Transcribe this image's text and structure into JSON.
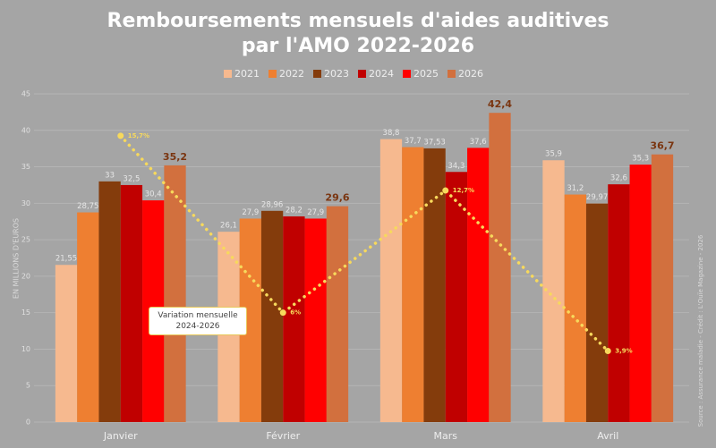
{
  "chart_data": {
    "type": "bar",
    "title": [
      "Remboursements mensuels d'aides auditives",
      "par l'AMO 2022-2026"
    ],
    "y_label": "EN MILLIONS D'EUROS",
    "source": "Source : Assurance maladie - Crédit : L'Ouïe Magazine - 2026",
    "categories": [
      "Janvier",
      "Février",
      "Mars",
      "Avril"
    ],
    "ylim": [
      0,
      45
    ],
    "yticks": [
      0,
      5,
      10,
      15,
      20,
      25,
      30,
      35,
      40,
      45
    ],
    "grid": true,
    "y2lim": [
      0,
      18
    ],
    "series": [
      {
        "name": "2021",
        "color": "#f6b98f",
        "values": [
          21.55,
          26.1,
          38.8,
          35.9
        ],
        "value_labels": [
          "21,55",
          "26,1",
          "38,8",
          "35,9"
        ]
      },
      {
        "name": "2022",
        "color": "#ee7f31",
        "values": [
          28.75,
          27.9,
          37.7,
          31.2
        ],
        "value_labels": [
          "28,75",
          "27,9",
          "37,7",
          "31,2"
        ]
      },
      {
        "name": "2023",
        "color": "#843c0c",
        "values": [
          33,
          28.96,
          37.53,
          29.97
        ],
        "value_labels": [
          "33",
          "28,96",
          "37,53",
          "29,97"
        ]
      },
      {
        "name": "2024",
        "color": "#c00000",
        "values": [
          32.5,
          28.2,
          34.3,
          32.6
        ],
        "value_labels": [
          "32,5",
          "28,2",
          "34,3",
          "32,6"
        ]
      },
      {
        "name": "2025",
        "color": "#ff0000",
        "values": [
          30.4,
          27.9,
          37.6,
          35.3
        ],
        "value_labels": [
          "30,4",
          "27,9",
          "37,6",
          "35,3"
        ]
      },
      {
        "name": "2026",
        "color": "#d2703e",
        "values": [
          35.2,
          29.6,
          42.4,
          36.7
        ],
        "value_labels": [
          "35,2",
          "29,6",
          "42,4",
          "36,7"
        ]
      },
      {
        "name": "Variation mensuelle 2024-2026",
        "type": "line",
        "axis": "y2",
        "color": "#f7d95c",
        "values": [
          15.7,
          6,
          12.7,
          3.9
        ],
        "value_labels": [
          "15,7%",
          "6%",
          "12,7%",
          "3,9%"
        ]
      }
    ]
  }
}
